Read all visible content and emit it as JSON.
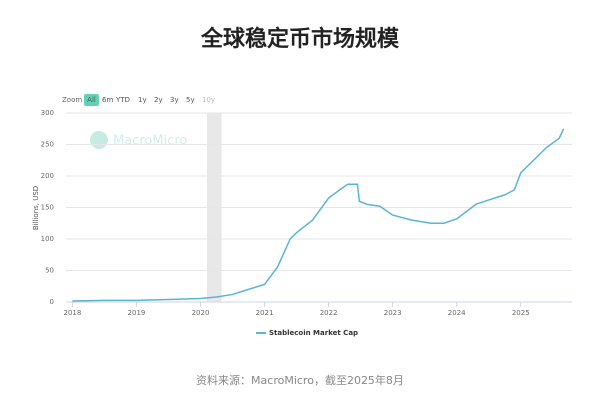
{
  "title": "全球稳定币市场规模",
  "controls": {
    "label": "Zoom",
    "buttons": [
      "All",
      "6m",
      "YTD",
      "1y",
      "2y",
      "3y",
      "5y",
      "10y"
    ],
    "active_index": 0
  },
  "watermark": "MacroMicro",
  "source": "资料来源：MacroMicro，截至2025年8月",
  "chart_data": {
    "type": "line",
    "y_label": "Billions, USD",
    "x": [
      2018.0,
      2018.5,
      2019.0,
      2019.5,
      2020.0,
      2020.25,
      2020.5,
      2020.75,
      2021.0,
      2021.2,
      2021.4,
      2021.5,
      2021.75,
      2022.0,
      2022.2,
      2022.3,
      2022.45,
      2022.48,
      2022.6,
      2022.8,
      2023.0,
      2023.3,
      2023.6,
      2023.8,
      2024.0,
      2024.3,
      2024.5,
      2024.75,
      2024.9,
      2025.0,
      2025.2,
      2025.4,
      2025.6,
      2025.67
    ],
    "series": [
      {
        "name": "Stablecoin Market Cap",
        "color": "#5ab4d6",
        "values": [
          1.5,
          2.5,
          2.5,
          4,
          5.5,
          8,
          12,
          20,
          28,
          55,
          100,
          110,
          130,
          165,
          180,
          187,
          187,
          160,
          155,
          152,
          138,
          130,
          125,
          125,
          132,
          155,
          162,
          170,
          178,
          205,
          225,
          245,
          260,
          275
        ]
      }
    ],
    "xlim": [
      2017.9,
      2025.8
    ],
    "xticks": [
      2018,
      2019,
      2020,
      2021,
      2022,
      2023,
      2024,
      2025
    ],
    "ylim": [
      0,
      300
    ],
    "yticks": [
      0,
      50,
      100,
      150,
      200,
      250,
      300
    ],
    "shade": [
      2020.1,
      2020.33
    ],
    "grid": true
  }
}
